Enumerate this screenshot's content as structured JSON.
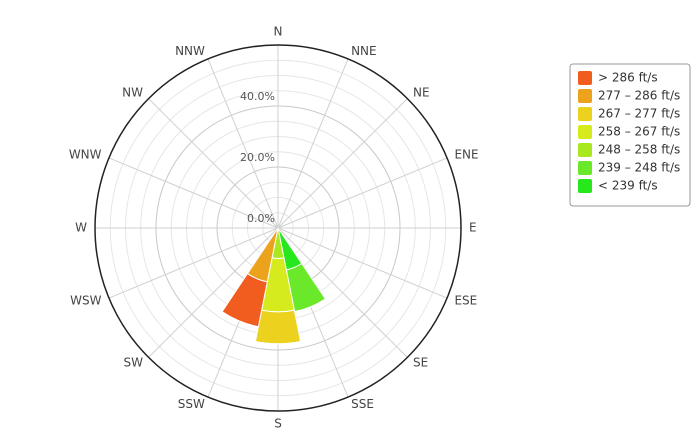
{
  "chart_data": {
    "type": "windrose",
    "categories": [
      "N",
      "NNE",
      "NE",
      "ENE",
      "E",
      "ESE",
      "SE",
      "SSE",
      "S",
      "SSW",
      "SW",
      "WSW",
      "W",
      "WNW",
      "NW",
      "NNW"
    ],
    "series": [
      {
        "name": "> 286 ft/s",
        "color": "#f15c1f",
        "values": [
          0,
          0,
          0,
          0,
          0,
          0,
          0,
          0,
          0,
          15,
          0,
          0,
          0,
          0,
          0,
          0
        ]
      },
      {
        "name": "277 – 286 ft/s",
        "color": "#eba21d",
        "values": [
          0,
          0,
          0,
          0,
          0,
          0,
          0,
          0,
          0,
          18,
          0,
          0,
          0,
          0,
          0,
          0
        ]
      },
      {
        "name": "267 – 277 ft/s",
        "color": "#ecd21e",
        "values": [
          0,
          0,
          0,
          0,
          0,
          0,
          0,
          0,
          10.5,
          0,
          0,
          0,
          0,
          0,
          0,
          0
        ]
      },
      {
        "name": "258 – 267 ft/s",
        "color": "#d5eb1e",
        "values": [
          0,
          0,
          0,
          0,
          0,
          0,
          0,
          0,
          17.5,
          0,
          0,
          0,
          0,
          0,
          0,
          0
        ]
      },
      {
        "name": "248 – 258 ft/s",
        "color": "#a9e81f",
        "values": [
          0,
          0,
          0,
          0,
          0,
          0,
          0,
          0,
          10,
          0,
          0,
          0,
          0,
          0,
          0,
          0
        ]
      },
      {
        "name": "239 – 248 ft/s",
        "color": "#6ae82a",
        "values": [
          0,
          0,
          0,
          0,
          0,
          0,
          0,
          14,
          0,
          0,
          0,
          0,
          0,
          0,
          0,
          0
        ]
      },
      {
        "name": "< 239 ft/s",
        "color": "#26e81d",
        "values": [
          0,
          0,
          0,
          0,
          0,
          0,
          0,
          14,
          0,
          0,
          0,
          0,
          0,
          0,
          0,
          0
        ]
      }
    ],
    "ylim": [
      0,
      60
    ],
    "yticks": [
      {
        "value": 0,
        "label": "0.0%"
      },
      {
        "value": 20,
        "label": "20.0%"
      },
      {
        "value": 40,
        "label": "40.0%"
      }
    ],
    "yminor": [
      5,
      10,
      15,
      25,
      30,
      35,
      45,
      50,
      55
    ],
    "grid": true,
    "legend": "right"
  }
}
